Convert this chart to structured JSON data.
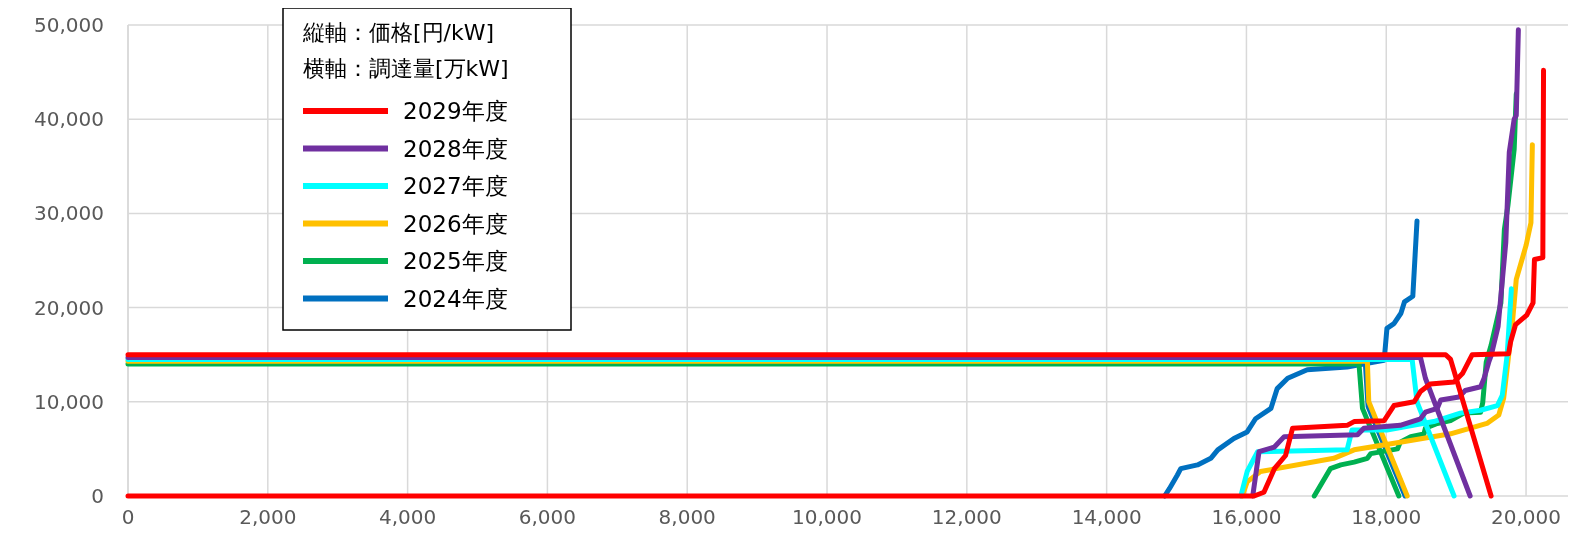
{
  "chart_data": {
    "type": "line",
    "ylabel": "縦軸：価格[円/kW]",
    "xlabel": "横軸：調達量[万kW]",
    "legend": "top left",
    "grid": true,
    "xlim": [
      0,
      20600
    ],
    "ylim": [
      0,
      50000
    ],
    "xticks": [
      0,
      {
        "value": 2000,
        "label": "2,000"
      },
      {
        "value": 4000,
        "label": "4,000"
      },
      {
        "value": 6000,
        "label": "6,000"
      },
      {
        "value": 8000,
        "label": "8,000"
      },
      {
        "value": 10000,
        "label": "10,000"
      },
      {
        "value": 12000,
        "label": "12,000"
      },
      {
        "value": 14000,
        "label": "14,000"
      },
      {
        "value": 16000,
        "label": "16,000"
      },
      {
        "value": 18000,
        "label": "18,000"
      },
      {
        "value": 20000,
        "label": "20,000"
      }
    ],
    "yticks": [
      0,
      {
        "value": 10000,
        "label": "10,000"
      },
      {
        "value": 20000,
        "label": "20,000"
      },
      {
        "value": 30000,
        "label": "30,000"
      },
      {
        "value": 40000,
        "label": "40,000"
      },
      {
        "value": 50000,
        "label": "50,000"
      }
    ],
    "series": [
      {
        "name": "2029年度",
        "color": "#ff0000",
        "x": [
          0,
          18850,
          18920,
          19500
        ],
        "values": [
          15000,
          15000,
          14500,
          0
        ]
      },
      {
        "color": "#ff0000",
        "x": [
          0,
          16110,
          16250,
          16400,
          16560,
          16660,
          17440,
          17540,
          17970,
          18110,
          18400,
          18490,
          18630,
          18970,
          19090,
          19230,
          19750,
          19780,
          19850,
          20010,
          20100,
          20120,
          20240,
          20250
        ],
        "values": [
          0,
          0,
          400,
          2900,
          4300,
          7200,
          7500,
          7900,
          8000,
          9600,
          10000,
          11100,
          11900,
          12100,
          13000,
          15000,
          15100,
          16400,
          18200,
          19200,
          20500,
          25100,
          25300,
          45200
        ]
      },
      {
        "name": "2028年度",
        "color": "#7030a0",
        "x": [
          0,
          18490,
          18560,
          19200
        ],
        "values": [
          14700,
          14700,
          12500,
          0
        ]
      },
      {
        "color": "#7030a0",
        "x": [
          16090,
          16180,
          16400,
          16540,
          17590,
          17680,
          18200,
          18490,
          18560,
          18730,
          18780,
          19040,
          19130,
          19350,
          19400,
          19470,
          19500,
          19600,
          19710,
          19760,
          19830,
          19860,
          19890
        ],
        "values": [
          0,
          4700,
          5200,
          6300,
          6500,
          7200,
          7500,
          8200,
          8900,
          9300,
          10200,
          10500,
          11200,
          11600,
          12500,
          14300,
          14900,
          18000,
          26900,
          36500,
          40000,
          40400,
          49500
        ]
      },
      {
        "name": "2027年度",
        "color": "#00ffff",
        "x": [
          0,
          18370,
          18440,
          18970
        ],
        "values": [
          14500,
          14500,
          10000,
          0
        ]
      },
      {
        "color": "#00ffff",
        "x": [
          15920,
          16010,
          16160,
          17440,
          17510,
          18010,
          18680,
          19060,
          19350,
          19590,
          19660,
          19730,
          19790
        ],
        "values": [
          0,
          2600,
          4700,
          4900,
          7000,
          7000,
          7900,
          8800,
          9100,
          9600,
          10700,
          15000,
          22000
        ]
      },
      {
        "name": "2026年度",
        "color": "#ffc000",
        "x": [
          0,
          17730,
          17750,
          18300
        ],
        "values": [
          14300,
          14300,
          10000,
          0
        ]
      },
      {
        "color": "#ffc000",
        "x": [
          15940,
          16010,
          16200,
          17250,
          17540,
          18200,
          18920,
          19440,
          19610,
          19680,
          19730,
          19810,
          19860,
          20000,
          20070,
          20090
        ],
        "values": [
          0,
          1500,
          2600,
          4000,
          4900,
          5700,
          6600,
          7700,
          8600,
          10400,
          13600,
          18800,
          23000,
          26600,
          29000,
          37300
        ]
      },
      {
        "name": "2025年度",
        "color": "#00b050",
        "x": [
          0,
          17610,
          17660,
          18180
        ],
        "values": [
          14000,
          14000,
          9300,
          0
        ]
      },
      {
        "color": "#00b050",
        "x": [
          16970,
          17200,
          17350,
          17540,
          17730,
          17780,
          18160,
          18200,
          18350,
          18540,
          18560,
          18730,
          18920,
          19110,
          19350,
          19380,
          19430,
          19500,
          19640,
          19690,
          19740,
          19830,
          19860
        ],
        "values": [
          0,
          2900,
          3300,
          3600,
          4000,
          4500,
          5000,
          5700,
          6300,
          6600,
          7200,
          7700,
          8000,
          8800,
          8900,
          9900,
          14200,
          16000,
          20500,
          28300,
          30800,
          36800,
          42700
        ]
      },
      {
        "name": "2024年度",
        "color": "#0070c0",
        "x": [
          17700,
          17740,
          18270
        ],
        "values": [
          14200,
          9500,
          0
        ]
      },
      {
        "color": "#0070c0",
        "x": [
          14830,
          14900,
          15010,
          15060,
          15300,
          15490,
          15590,
          15820,
          16010,
          16130,
          16350,
          16440,
          16590,
          16870,
          17440,
          17730,
          17970,
          18010,
          18110,
          18210,
          18260,
          18380,
          18440
        ],
        "values": [
          0,
          800,
          2200,
          2900,
          3300,
          4000,
          4900,
          6100,
          6800,
          8200,
          9300,
          11400,
          12500,
          13400,
          13700,
          14100,
          14400,
          17800,
          18300,
          19400,
          20600,
          21200,
          29200
        ]
      }
    ]
  }
}
